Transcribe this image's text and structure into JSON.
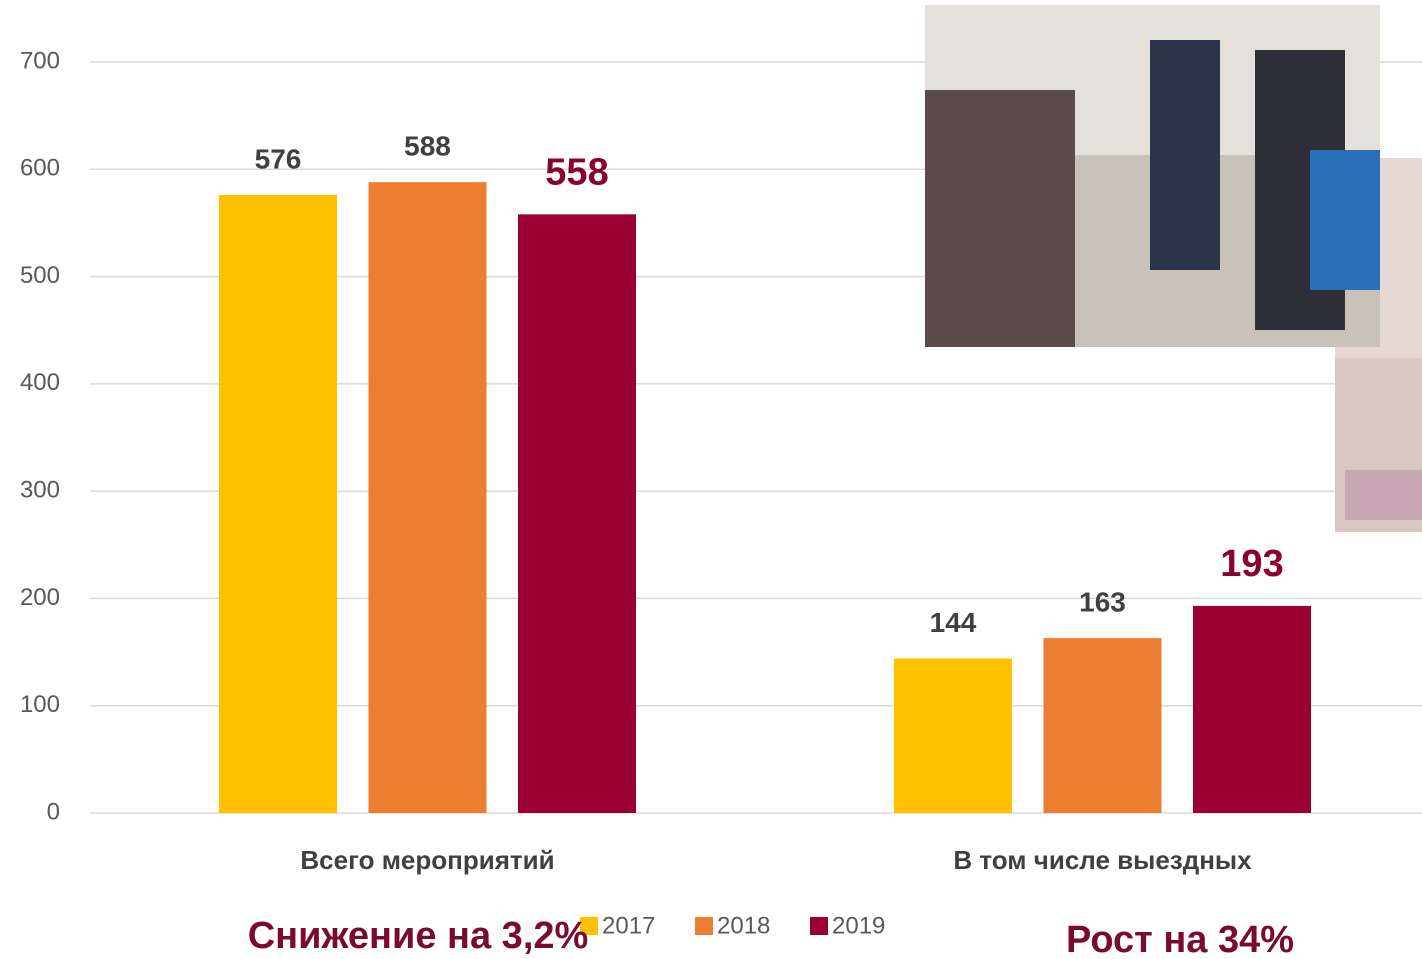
{
  "chart_data": {
    "type": "bar",
    "categories": [
      "Всего мероприятий",
      "В том числе выездных"
    ],
    "series": [
      {
        "name": "2017",
        "color": "#ffc000",
        "values": [
          576,
          144
        ]
      },
      {
        "name": "2018",
        "color": "#ed7d31",
        "values": [
          588,
          163
        ]
      },
      {
        "name": "2019",
        "color": "#9b0033",
        "values": [
          558,
          193
        ]
      }
    ],
    "ylim": [
      0,
      700
    ],
    "yticks": [
      0,
      100,
      200,
      300,
      400,
      500,
      600,
      700
    ],
    "grid": true,
    "legend": "bottom",
    "annotations": [
      "Снижение на 3,2%",
      "Рост на 34%"
    ]
  }
}
